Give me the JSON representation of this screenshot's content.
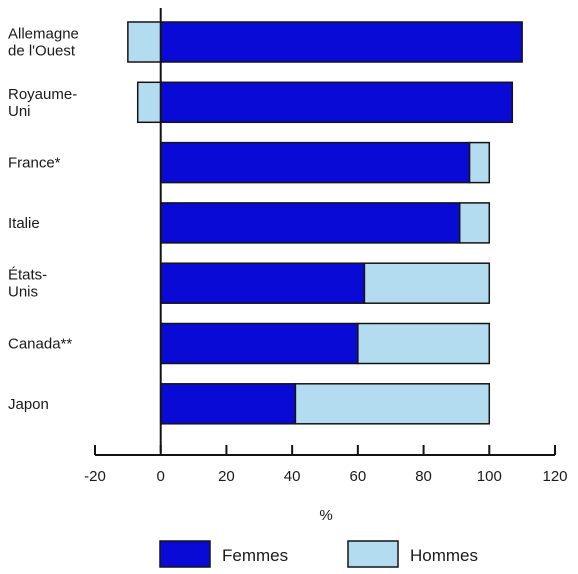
{
  "chart_data": {
    "type": "bar",
    "orientation": "horizontal",
    "stacked": true,
    "categories": [
      [
        "Allemagne",
        "de l'Ouest"
      ],
      [
        "Royaume-",
        "Uni"
      ],
      [
        "France*"
      ],
      [
        "Italie"
      ],
      [
        "États-",
        "Unis"
      ],
      [
        "Canada**"
      ],
      [
        "Japon"
      ]
    ],
    "series": [
      {
        "name": "Femmes",
        "color": "#0a0ad6",
        "values": [
          110,
          107,
          94,
          91,
          62,
          60,
          41
        ]
      },
      {
        "name": "Hommes",
        "color": "#b4dcf0",
        "values": [
          -10,
          -7,
          6,
          9,
          38,
          40,
          59
        ]
      }
    ],
    "xlabel": "%",
    "xlim": [
      -20,
      120
    ],
    "xticks": [
      -20,
      0,
      20,
      40,
      60,
      80,
      100,
      120
    ],
    "grid": false,
    "legend": "bottom"
  }
}
